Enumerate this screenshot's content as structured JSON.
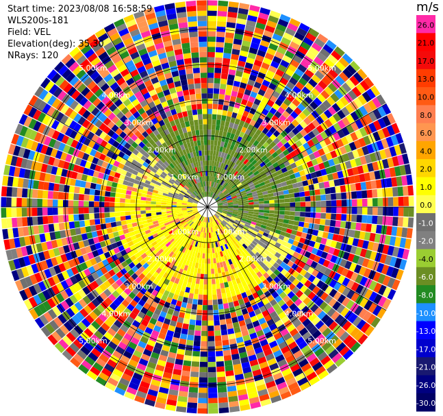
{
  "header": {
    "start_time": "Start time: 2023/08/08 16:58:59",
    "instrument": "WLS200s-181",
    "field": "Field: VEL",
    "elevation": "Elevation(deg): 35.30",
    "nrays": "NRays: 120"
  },
  "chart_data": {
    "type": "heatmap",
    "projection": "polar-ppi",
    "field": "VEL",
    "units": "m/s",
    "rays": 120,
    "range_rings_km": [
      1.0,
      2.0,
      3.0,
      4.0,
      5.0
    ],
    "ring_labels": [
      "1.00km",
      "2.00km",
      "3.00km",
      "4.00km",
      "5.00km"
    ],
    "max_range_km": 5.8,
    "colorbar": {
      "units_label": "m/s",
      "ticks": [
        "26.0",
        "21.0",
        "17.0",
        "13.0",
        "10.0",
        "8.0",
        "6.0",
        "4.0",
        "2.0",
        "1.0",
        "0.0",
        "-1.0",
        "-2.0",
        "-4.0",
        "-6.0",
        "-8.0",
        "-10.0",
        "-13.0",
        "-17.0",
        "-21.0",
        "-26.0",
        "-30.0"
      ],
      "colors": [
        "#ff2aa8",
        "#ff0000",
        "#f50a0a",
        "#ff3c00",
        "#ff5a14",
        "#ff7f50",
        "#ff9650",
        "#ffa500",
        "#ffd700",
        "#ffff00",
        "#ffff50",
        "#707070",
        "#808080",
        "#9acd32",
        "#6b8e23",
        "#228b22",
        "#1e90ff",
        "#0000ff",
        "#0000cd",
        "#191970",
        "#000080",
        "#000066"
      ]
    }
  }
}
